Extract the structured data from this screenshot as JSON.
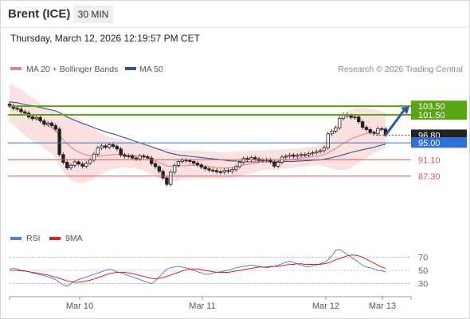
{
  "header": {
    "title": "Brent (ICE)",
    "timeframe": "30 MIN",
    "timestamp": "Thursday, March 12, 2026 12:19:57 PM CET"
  },
  "legend": {
    "items": [
      {
        "label": "MA 20 + Bollinger Bands",
        "color": "#f08080"
      },
      {
        "label": "MA 50",
        "color": "#2f5597"
      }
    ],
    "copyright": "Research © 2026 Trading Central"
  },
  "rsi_legend": {
    "items": [
      {
        "label": "RSI",
        "color": "#5b7fd6"
      },
      {
        "label": "9MA",
        "color": "#e01f1f"
      }
    ]
  },
  "chart_data": [
    {
      "type": "line",
      "name": "price",
      "x_labels": [
        "Mar 10",
        "Mar 11",
        "Mar 12",
        "Mar 13"
      ],
      "levels": [
        {
          "label": "103.50",
          "value": 103.5,
          "color": "#5aa514",
          "style": "resistance"
        },
        {
          "label": "101.50",
          "value": 101.5,
          "color": "#5aa514",
          "style": "resistance"
        },
        {
          "label": "96.80",
          "value": 96.8,
          "color": "#222222",
          "style": "last"
        },
        {
          "label": "95.00",
          "value": 95.0,
          "color": "#2f6fd6",
          "style": "pivot"
        },
        {
          "label": "91.10",
          "value": 91.1,
          "color": "#e05555",
          "style": "support"
        },
        {
          "label": "87.30",
          "value": 87.3,
          "color": "#e05555",
          "style": "support"
        }
      ],
      "y_range": [
        76,
        110
      ],
      "close": [
        103.6,
        103.0,
        102.8,
        102.2,
        101.9,
        101.0,
        100.6,
        100.9,
        100.1,
        99.3,
        99.6,
        99.0,
        98.2,
        92.3,
        90.5,
        89.2,
        89.8,
        90.6,
        90.1,
        89.6,
        90.3,
        91.0,
        92.4,
        93.8,
        94.3,
        94.0,
        94.6,
        94.2,
        93.6,
        92.2,
        91.9,
        92.0,
        91.5,
        91.3,
        92.0,
        91.8,
        91.5,
        90.2,
        89.5,
        88.4,
        86.9,
        85.4,
        88.2,
        89.8,
        90.7,
        91.0,
        90.9,
        90.7,
        90.3,
        89.9,
        89.4,
        89.0,
        88.7,
        88.6,
        88.3,
        88.2,
        88.6,
        88.4,
        88.8,
        89.5,
        90.5,
        91.4,
        91.1,
        91.6,
        91.3,
        90.9,
        91.0,
        91.1,
        90.6,
        89.6,
        90.5,
        91.7,
        91.9,
        92.2,
        91.9,
        92.1,
        92.3,
        92.2,
        92.5,
        92.7,
        93.0,
        93.2,
        93.9,
        97.1,
        97.7,
        98.5,
        100.7,
        101.6,
        101.3,
        100.9,
        101.0,
        99.9,
        98.6,
        98.1,
        97.4,
        97.2,
        98.3,
        98.2,
        96.8
      ],
      "ma20": [
        104.0,
        103.6,
        103.2,
        102.6,
        102.1,
        101.6,
        101.2,
        100.7,
        100.1,
        99.5,
        99.0,
        98.5,
        97.8,
        96.7,
        95.7,
        94.8,
        94.0,
        93.4,
        92.9,
        92.5,
        92.2,
        92.0,
        91.9,
        91.9,
        92.0,
        92.1,
        92.2,
        92.3,
        92.3,
        92.3,
        92.3,
        92.2,
        92.1,
        92.0,
        91.9,
        91.7,
        91.5,
        91.2,
        90.9,
        90.5,
        90.1,
        89.7,
        89.6,
        89.6,
        89.6,
        89.7,
        89.7,
        89.8,
        89.8,
        89.8,
        89.7,
        89.6,
        89.5,
        89.4,
        89.3,
        89.2,
        89.2,
        89.2,
        89.3,
        89.5,
        89.7,
        89.9,
        90.0,
        90.2,
        90.3,
        90.5,
        90.6,
        90.7,
        90.7,
        90.7,
        90.8,
        90.9,
        91.0,
        91.1,
        91.2,
        91.3,
        91.5,
        91.6,
        91.7,
        91.8,
        91.9,
        92.0,
        92.3,
        92.7,
        93.2,
        93.7,
        94.3,
        94.9,
        95.4,
        95.9,
        96.3,
        96.6,
        96.9,
        97.2,
        97.4,
        97.6,
        97.9,
        98.1,
        98.2
      ],
      "bb_upper": [
        108.5,
        108.3,
        107.9,
        107.3,
        106.7,
        106.1,
        105.5,
        104.9,
        104.2,
        103.5,
        103.0,
        102.6,
        102.3,
        102.2,
        102.1,
        101.9,
        101.6,
        101.2,
        100.7,
        100.1,
        99.4,
        98.8,
        98.1,
        97.6,
        97.2,
        96.8,
        96.5,
        96.2,
        96.0,
        95.8,
        95.6,
        95.4,
        95.1,
        94.9,
        94.7,
        94.5,
        94.3,
        94.1,
        93.9,
        93.8,
        93.7,
        93.6,
        93.5,
        93.4,
        93.3,
        93.2,
        93.2,
        93.2,
        93.2,
        93.2,
        93.1,
        93.1,
        93.0,
        93.0,
        92.9,
        92.9,
        92.9,
        92.9,
        92.9,
        93.0,
        93.0,
        93.1,
        93.1,
        93.2,
        93.2,
        93.3,
        93.3,
        93.3,
        93.4,
        93.4,
        93.4,
        93.5,
        93.5,
        93.6,
        93.6,
        93.7,
        93.8,
        93.9,
        94.0,
        94.1,
        94.3,
        94.6,
        95.2,
        96.3,
        97.6,
        99.0,
        100.4,
        101.5,
        102.2,
        102.7,
        103.0,
        103.1,
        103.1,
        103.0,
        102.9,
        102.7,
        102.5,
        102.3,
        102.1
      ],
      "bb_lower": [
        99.8,
        99.2,
        98.4,
        97.5,
        96.7,
        96.0,
        95.5,
        94.9,
        94.4,
        93.8,
        93.2,
        92.5,
        91.6,
        89.9,
        88.3,
        87.2,
        86.4,
        85.9,
        85.7,
        85.6,
        85.9,
        86.3,
        86.8,
        87.3,
        87.8,
        88.2,
        88.6,
        88.9,
        89.1,
        89.2,
        89.3,
        89.2,
        89.1,
        89.0,
        88.8,
        88.6,
        88.2,
        87.8,
        87.4,
        86.9,
        86.4,
        85.8,
        85.9,
        86.1,
        86.3,
        86.5,
        86.6,
        86.7,
        86.8,
        86.8,
        86.8,
        86.8,
        86.8,
        86.7,
        86.7,
        86.7,
        86.7,
        86.8,
        86.9,
        87.0,
        87.3,
        87.5,
        87.8,
        88.0,
        88.2,
        88.4,
        88.6,
        88.7,
        88.8,
        88.8,
        88.9,
        89.0,
        89.1,
        89.2,
        89.3,
        89.4,
        89.5,
        89.6,
        89.7,
        89.8,
        89.8,
        89.8,
        89.6,
        89.3,
        89.0,
        88.8,
        88.6,
        88.7,
        88.9,
        89.3,
        89.8,
        90.4,
        91.0,
        91.6,
        92.1,
        92.6,
        93.0,
        93.4,
        93.8
      ],
      "ma50": [
        104.5,
        104.4,
        104.3,
        104.1,
        103.9,
        103.7,
        103.6,
        103.4,
        103.2,
        103.0,
        102.8,
        102.6,
        102.4,
        102.0,
        101.5,
        101.0,
        100.6,
        100.2,
        99.9,
        99.5,
        99.2,
        98.9,
        98.5,
        98.2,
        97.9,
        97.6,
        97.3,
        97.1,
        96.8,
        96.5,
        96.2,
        95.9,
        95.6,
        95.3,
        95.0,
        94.7,
        94.4,
        94.1,
        93.8,
        93.5,
        93.2,
        92.8,
        92.6,
        92.4,
        92.2,
        92.1,
        92.0,
        91.9,
        91.8,
        91.7,
        91.6,
        91.5,
        91.4,
        91.3,
        91.2,
        91.1,
        91.0,
        90.9,
        90.8,
        90.8,
        90.7,
        90.7,
        90.6,
        90.6,
        90.6,
        90.6,
        90.6,
        90.6,
        90.6,
        90.6,
        90.6,
        90.6,
        90.7,
        90.7,
        90.7,
        90.8,
        90.8,
        90.9,
        90.9,
        91.0,
        91.0,
        91.1,
        91.2,
        91.4,
        91.6,
        91.8,
        92.0,
        92.3,
        92.5,
        92.8,
        93.0,
        93.2,
        93.4,
        93.6,
        93.8,
        94.0,
        94.3,
        94.5,
        94.7
      ]
    },
    {
      "type": "line",
      "name": "rsi",
      "y_range": [
        15,
        85
      ],
      "y_ticks": [
        70,
        50,
        30
      ],
      "rsi": [
        52,
        53,
        52,
        50,
        49,
        48,
        46,
        45,
        43,
        42,
        40,
        38,
        36,
        32,
        28,
        26,
        30,
        34,
        36,
        38,
        40,
        42,
        44,
        46,
        48,
        50,
        52,
        50,
        48,
        46,
        44,
        42,
        40,
        38,
        36,
        34,
        32,
        30,
        34,
        40,
        46,
        52,
        54,
        55,
        56,
        55,
        54,
        52,
        50,
        48,
        46,
        44,
        44,
        46,
        47,
        48,
        49,
        50,
        52,
        54,
        55,
        56,
        57,
        58,
        57,
        56,
        55,
        54,
        55,
        56,
        58,
        60,
        62,
        64,
        62,
        60,
        58,
        56,
        55,
        57,
        58,
        60,
        62,
        66,
        72,
        80,
        82,
        78,
        74,
        70,
        66,
        62,
        58,
        55,
        54,
        52,
        50,
        49,
        48
      ],
      "ma9": [
        50,
        50,
        50,
        49,
        49,
        48,
        47,
        46,
        45,
        44,
        43,
        41,
        40,
        38,
        36,
        34,
        33,
        32,
        32,
        33,
        34,
        35,
        37,
        39,
        41,
        43,
        45,
        46,
        47,
        47,
        47,
        46,
        45,
        44,
        42,
        41,
        39,
        38,
        37,
        38,
        39,
        41,
        43,
        45,
        47,
        49,
        51,
        52,
        52,
        52,
        51,
        50,
        49,
        48,
        47,
        47,
        47,
        47,
        48,
        49,
        50,
        51,
        52,
        53,
        54,
        55,
        55,
        55,
        56,
        56,
        56,
        57,
        58,
        59,
        59,
        60,
        60,
        59,
        59,
        59,
        59,
        59,
        60,
        61,
        63,
        66,
        68,
        70,
        72,
        73,
        73,
        72,
        70,
        67,
        64,
        61,
        58,
        55,
        53
      ]
    }
  ]
}
